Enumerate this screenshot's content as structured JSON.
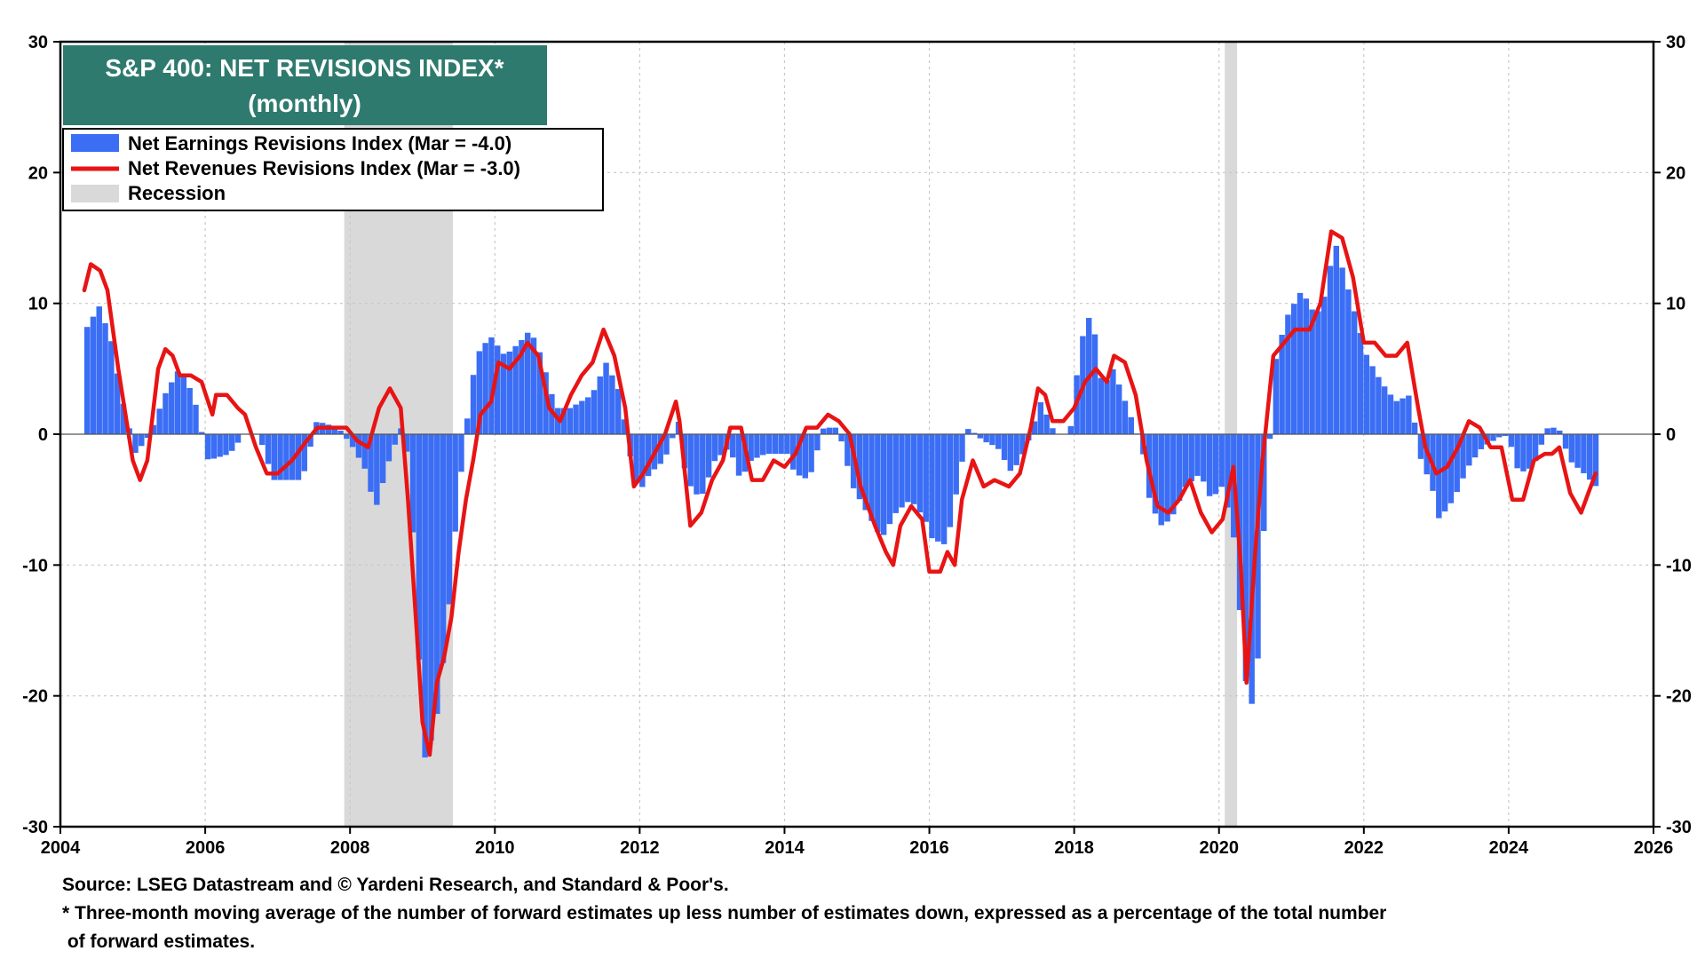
{
  "chart_data": {
    "type": "bar",
    "title": "S&P 400: NET REVISIONS INDEX*",
    "subtitle": "(monthly)",
    "x_range": [
      2004,
      2026
    ],
    "x_ticks": [
      2004,
      2006,
      2008,
      2010,
      2012,
      2014,
      2016,
      2018,
      2020,
      2022,
      2024,
      2026
    ],
    "ylim": [
      -30,
      30
    ],
    "y_ticks": [
      -30,
      -20,
      -10,
      0,
      10,
      20,
      30
    ],
    "grid": true,
    "legend_position": "top-left",
    "legend": [
      {
        "label": "Net Earnings Revisions Index (Mar  = -4.0)",
        "color": "#3b6ef5",
        "kind": "bar"
      },
      {
        "label": "Net Revenues Revisions Index (Mar  = -3.0)",
        "color": "#e81414",
        "kind": "line"
      },
      {
        "label": "Recession",
        "color": "#d9d9d9",
        "kind": "band"
      }
    ],
    "recessions": [
      [
        2007.92,
        2009.42
      ],
      [
        2020.08,
        2020.25
      ]
    ],
    "series": [
      {
        "name": "Net Earnings Revisions Index",
        "kind": "bar",
        "color": "#3b6ef5",
        "anchors": [
          [
            2004.33,
            8.2
          ],
          [
            2004.5,
            9.8
          ],
          [
            2004.67,
            7
          ],
          [
            2004.8,
            3
          ],
          [
            2005.0,
            -1.5
          ],
          [
            2005.2,
            0
          ],
          [
            2005.4,
            3
          ],
          [
            2005.6,
            5
          ],
          [
            2005.8,
            3
          ],
          [
            2006.0,
            -2
          ],
          [
            2006.3,
            -1.5
          ],
          [
            2006.5,
            0
          ],
          [
            2006.7,
            0
          ],
          [
            2006.9,
            -3.5
          ],
          [
            2007.1,
            -3.5
          ],
          [
            2007.3,
            -3.5
          ],
          [
            2007.5,
            1
          ],
          [
            2007.8,
            0.5
          ],
          [
            2008.0,
            -1
          ],
          [
            2008.2,
            -3
          ],
          [
            2008.3,
            -6
          ],
          [
            2008.5,
            -2
          ],
          [
            2008.7,
            1
          ],
          [
            2008.8,
            -4
          ],
          [
            2008.92,
            -18
          ],
          [
            2009.0,
            -25
          ],
          [
            2009.15,
            -22
          ],
          [
            2009.3,
            -15
          ],
          [
            2009.42,
            -7
          ],
          [
            2009.55,
            0
          ],
          [
            2009.7,
            6
          ],
          [
            2009.9,
            7.5
          ],
          [
            2010.1,
            6
          ],
          [
            2010.3,
            7
          ],
          [
            2010.45,
            8
          ],
          [
            2010.6,
            6
          ],
          [
            2010.8,
            2
          ],
          [
            2011.0,
            2
          ],
          [
            2011.3,
            3
          ],
          [
            2011.5,
            5.5
          ],
          [
            2011.7,
            3
          ],
          [
            2011.8,
            -1
          ],
          [
            2011.95,
            -4.5
          ],
          [
            2012.1,
            -3
          ],
          [
            2012.3,
            -2
          ],
          [
            2012.5,
            1
          ],
          [
            2012.6,
            -3.5
          ],
          [
            2012.8,
            -5
          ],
          [
            2013.0,
            -2
          ],
          [
            2013.2,
            -1
          ],
          [
            2013.35,
            -3.5
          ],
          [
            2013.5,
            -2
          ],
          [
            2013.7,
            -1.5
          ],
          [
            2014.0,
            -1.5
          ],
          [
            2014.1,
            -3
          ],
          [
            2014.3,
            -3.5
          ],
          [
            2014.5,
            0.5
          ],
          [
            2014.7,
            0.5
          ],
          [
            2014.9,
            -4
          ],
          [
            2015.1,
            -6
          ],
          [
            2015.3,
            -8
          ],
          [
            2015.5,
            -6
          ],
          [
            2015.7,
            -5
          ],
          [
            2015.9,
            -6.5
          ],
          [
            2016.0,
            -8
          ],
          [
            2016.2,
            -8.5
          ],
          [
            2016.35,
            -4
          ],
          [
            2016.5,
            0.5
          ],
          [
            2016.7,
            -0.5
          ],
          [
            2016.9,
            -1
          ],
          [
            2017.1,
            -3
          ],
          [
            2017.3,
            -1
          ],
          [
            2017.5,
            2.5
          ],
          [
            2017.7,
            0
          ],
          [
            2017.9,
            0
          ],
          [
            2018.05,
            7
          ],
          [
            2018.2,
            9.5
          ],
          [
            2018.35,
            3.5
          ],
          [
            2018.5,
            5
          ],
          [
            2018.7,
            2
          ],
          [
            2018.9,
            -1
          ],
          [
            2019.0,
            -5
          ],
          [
            2019.15,
            -7
          ],
          [
            2019.3,
            -6.5
          ],
          [
            2019.5,
            -4
          ],
          [
            2019.7,
            -3
          ],
          [
            2019.85,
            -5
          ],
          [
            2020.0,
            -4
          ],
          [
            2020.15,
            -7
          ],
          [
            2020.3,
            -17
          ],
          [
            2020.38,
            -22
          ],
          [
            2020.5,
            -17
          ],
          [
            2020.6,
            -5
          ],
          [
            2020.75,
            6
          ],
          [
            2020.9,
            9
          ],
          [
            2021.1,
            11
          ],
          [
            2021.3,
            9
          ],
          [
            2021.45,
            11
          ],
          [
            2021.55,
            15
          ],
          [
            2021.7,
            12
          ],
          [
            2021.85,
            9
          ],
          [
            2022.0,
            6
          ],
          [
            2022.2,
            4
          ],
          [
            2022.4,
            2.5
          ],
          [
            2022.6,
            3
          ],
          [
            2022.75,
            -2
          ],
          [
            2022.9,
            -4
          ],
          [
            2023.0,
            -6.5
          ],
          [
            2023.2,
            -5
          ],
          [
            2023.4,
            -2.5
          ],
          [
            2023.6,
            -1
          ],
          [
            2023.9,
            0
          ],
          [
            2024.0,
            -1
          ],
          [
            2024.1,
            -3
          ],
          [
            2024.3,
            -2.5
          ],
          [
            2024.5,
            0.5
          ],
          [
            2024.65,
            0.5
          ],
          [
            2024.8,
            -2
          ],
          [
            2025.0,
            -3
          ],
          [
            2025.17,
            -4
          ]
        ]
      },
      {
        "name": "Net Revenues Revisions Index",
        "kind": "line",
        "color": "#e81414",
        "points": [
          [
            2004.33,
            11
          ],
          [
            2004.42,
            13
          ],
          [
            2004.55,
            12.5
          ],
          [
            2004.65,
            11
          ],
          [
            2004.8,
            5
          ],
          [
            2005.0,
            -2
          ],
          [
            2005.1,
            -3.5
          ],
          [
            2005.2,
            -2
          ],
          [
            2005.35,
            5
          ],
          [
            2005.45,
            6.5
          ],
          [
            2005.55,
            6
          ],
          [
            2005.65,
            4.5
          ],
          [
            2005.8,
            4.5
          ],
          [
            2005.95,
            4
          ],
          [
            2006.1,
            1.5
          ],
          [
            2006.15,
            3
          ],
          [
            2006.3,
            3
          ],
          [
            2006.45,
            2
          ],
          [
            2006.55,
            1.5
          ],
          [
            2006.7,
            -1
          ],
          [
            2006.85,
            -3
          ],
          [
            2007.0,
            -3
          ],
          [
            2007.2,
            -2
          ],
          [
            2007.4,
            -0.5
          ],
          [
            2007.55,
            0.5
          ],
          [
            2007.75,
            0.5
          ],
          [
            2007.95,
            0.5
          ],
          [
            2008.1,
            -0.5
          ],
          [
            2008.25,
            -1
          ],
          [
            2008.4,
            2
          ],
          [
            2008.55,
            3.5
          ],
          [
            2008.7,
            2
          ],
          [
            2008.8,
            -5
          ],
          [
            2008.92,
            -15
          ],
          [
            2009.0,
            -22
          ],
          [
            2009.1,
            -24.5
          ],
          [
            2009.2,
            -19
          ],
          [
            2009.3,
            -17
          ],
          [
            2009.4,
            -14
          ],
          [
            2009.5,
            -9
          ],
          [
            2009.6,
            -5
          ],
          [
            2009.7,
            -2
          ],
          [
            2009.8,
            1.5
          ],
          [
            2009.95,
            2.5
          ],
          [
            2010.05,
            5.5
          ],
          [
            2010.2,
            5
          ],
          [
            2010.35,
            6
          ],
          [
            2010.45,
            7
          ],
          [
            2010.6,
            6
          ],
          [
            2010.75,
            2
          ],
          [
            2010.9,
            1
          ],
          [
            2011.05,
            3
          ],
          [
            2011.2,
            4.5
          ],
          [
            2011.35,
            5.5
          ],
          [
            2011.5,
            8
          ],
          [
            2011.65,
            6
          ],
          [
            2011.8,
            2
          ],
          [
            2011.92,
            -4
          ],
          [
            2012.05,
            -3
          ],
          [
            2012.2,
            -1.5
          ],
          [
            2012.35,
            0
          ],
          [
            2012.5,
            2.5
          ],
          [
            2012.55,
            1
          ],
          [
            2012.7,
            -7
          ],
          [
            2012.85,
            -6
          ],
          [
            2013.0,
            -3.5
          ],
          [
            2013.15,
            -2
          ],
          [
            2013.25,
            0.5
          ],
          [
            2013.4,
            0.5
          ],
          [
            2013.55,
            -3.5
          ],
          [
            2013.7,
            -3.5
          ],
          [
            2013.85,
            -2
          ],
          [
            2014.0,
            -2.5
          ],
          [
            2014.15,
            -1.5
          ],
          [
            2014.3,
            0.5
          ],
          [
            2014.45,
            0.5
          ],
          [
            2014.6,
            1.5
          ],
          [
            2014.75,
            1
          ],
          [
            2014.9,
            0
          ],
          [
            2015.05,
            -4
          ],
          [
            2015.25,
            -7
          ],
          [
            2015.4,
            -9
          ],
          [
            2015.5,
            -10
          ],
          [
            2015.6,
            -7
          ],
          [
            2015.75,
            -5.5
          ],
          [
            2015.9,
            -6.5
          ],
          [
            2016.0,
            -10.5
          ],
          [
            2016.15,
            -10.5
          ],
          [
            2016.25,
            -9
          ],
          [
            2016.35,
            -10
          ],
          [
            2016.45,
            -5
          ],
          [
            2016.6,
            -2
          ],
          [
            2016.75,
            -4
          ],
          [
            2016.9,
            -3.5
          ],
          [
            2017.1,
            -4
          ],
          [
            2017.25,
            -3
          ],
          [
            2017.4,
            0.5
          ],
          [
            2017.5,
            3.5
          ],
          [
            2017.6,
            3
          ],
          [
            2017.7,
            1
          ],
          [
            2017.85,
            1
          ],
          [
            2018.0,
            2
          ],
          [
            2018.15,
            4
          ],
          [
            2018.3,
            5
          ],
          [
            2018.45,
            4
          ],
          [
            2018.55,
            6
          ],
          [
            2018.7,
            5.5
          ],
          [
            2018.85,
            3
          ],
          [
            2019.0,
            -2
          ],
          [
            2019.15,
            -5.5
          ],
          [
            2019.3,
            -6
          ],
          [
            2019.45,
            -5
          ],
          [
            2019.6,
            -3.5
          ],
          [
            2019.75,
            -6
          ],
          [
            2019.9,
            -7.5
          ],
          [
            2020.05,
            -6.5
          ],
          [
            2020.2,
            -2.5
          ],
          [
            2020.3,
            -10
          ],
          [
            2020.38,
            -19
          ],
          [
            2020.5,
            -9
          ],
          [
            2020.6,
            -2
          ],
          [
            2020.75,
            6
          ],
          [
            2020.9,
            7
          ],
          [
            2021.05,
            8
          ],
          [
            2021.25,
            8
          ],
          [
            2021.4,
            10
          ],
          [
            2021.55,
            15.5
          ],
          [
            2021.7,
            15
          ],
          [
            2021.85,
            12
          ],
          [
            2022.0,
            7
          ],
          [
            2022.15,
            7
          ],
          [
            2022.3,
            6
          ],
          [
            2022.45,
            6
          ],
          [
            2022.6,
            7
          ],
          [
            2022.75,
            2
          ],
          [
            2022.85,
            -1
          ],
          [
            2023.0,
            -3
          ],
          [
            2023.15,
            -2.5
          ],
          [
            2023.3,
            -1
          ],
          [
            2023.45,
            1
          ],
          [
            2023.6,
            0.5
          ],
          [
            2023.75,
            -1
          ],
          [
            2023.9,
            -1
          ],
          [
            2024.05,
            -5
          ],
          [
            2024.2,
            -5
          ],
          [
            2024.35,
            -2
          ],
          [
            2024.5,
            -1.5
          ],
          [
            2024.6,
            -1.5
          ],
          [
            2024.7,
            -1
          ],
          [
            2024.85,
            -4.5
          ],
          [
            2025.0,
            -6
          ],
          [
            2025.1,
            -4.5
          ],
          [
            2025.2,
            -3
          ]
        ]
      }
    ],
    "footnotes": [
      "Source: LSEG Datastream and © Yardeni Research, and Standard & Poor's.",
      "* Three-month moving average of the number of forward estimates up less number of estimates down, expressed as a percentage of the total number",
      " of forward estimates."
    ]
  },
  "colors": {
    "title_bg": "#2e7a6e",
    "bars": "#3b6ef5",
    "line": "#e81414",
    "recession": "#d9d9d9",
    "grid": "#c8c8c8"
  }
}
